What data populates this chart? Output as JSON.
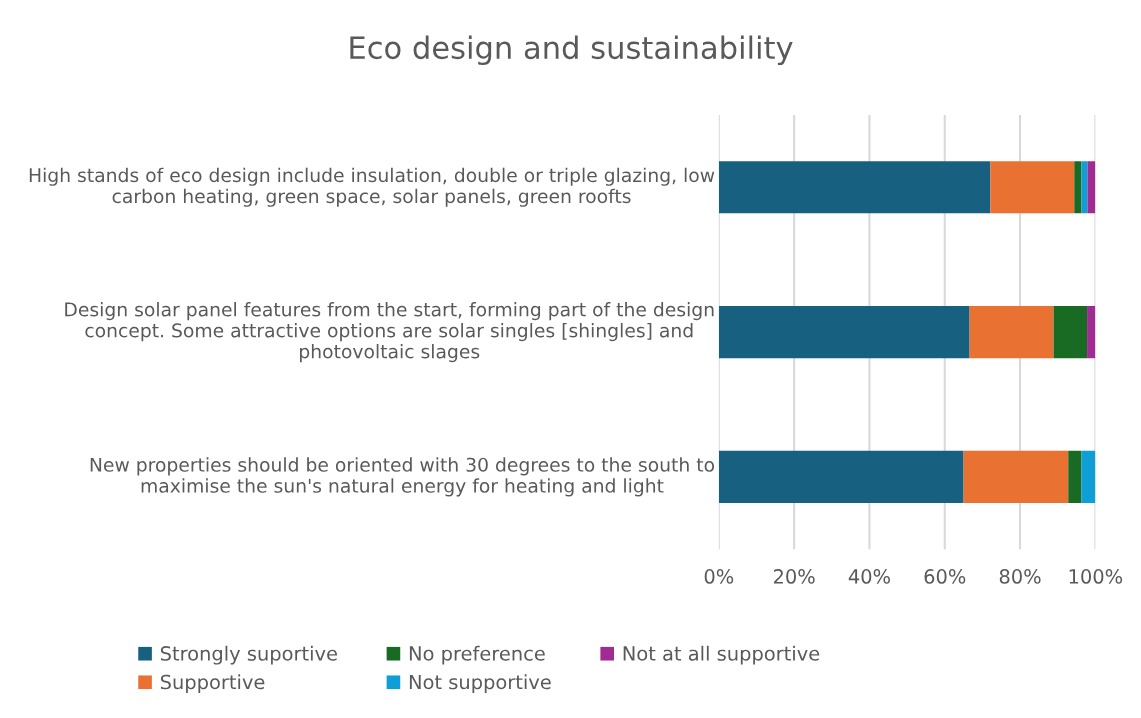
{
  "chart_data": {
    "type": "bar",
    "orientation": "horizontal",
    "stacked": true,
    "title": "Eco design and sustainability",
    "categories": [
      "High stands of eco design include insulation, double or triple glazing, low carbon heating, green space, solar panels, green roofts",
      "Design solar panel features from the start, forming part of the design concept. Some attractive options are solar singles [shingles] and photovoltaic slages",
      "New properties should be oriented with 30 degrees to the south to maximise the sun's natural energy for heating and light"
    ],
    "series": [
      {
        "name": "Strongly suportive",
        "color": "#17607f",
        "values": [
          72.1,
          66.6,
          65.0
        ]
      },
      {
        "name": "Supportive",
        "color": "#e97132",
        "values": [
          22.3,
          22.3,
          27.8
        ]
      },
      {
        "name": "No preference",
        "color": "#196b24",
        "values": [
          1.9,
          8.9,
          3.5
        ]
      },
      {
        "name": "Not supportive",
        "color": "#0f9ed5",
        "values": [
          1.6,
          0,
          3.7
        ]
      },
      {
        "name": "Not at all supportive",
        "color": "#a02b93",
        "values": [
          2.1,
          2.2,
          0
        ]
      }
    ],
    "xlim": [
      0,
      100
    ],
    "xticks": [
      {
        "value": 0,
        "label": "0%"
      },
      {
        "value": 20,
        "label": "20%"
      },
      {
        "value": 40,
        "label": "40%"
      },
      {
        "value": 60,
        "label": "60%"
      },
      {
        "value": 80,
        "label": "80%"
      },
      {
        "value": 100,
        "label": "100%"
      }
    ],
    "grid": "x",
    "legend": "bottom"
  }
}
